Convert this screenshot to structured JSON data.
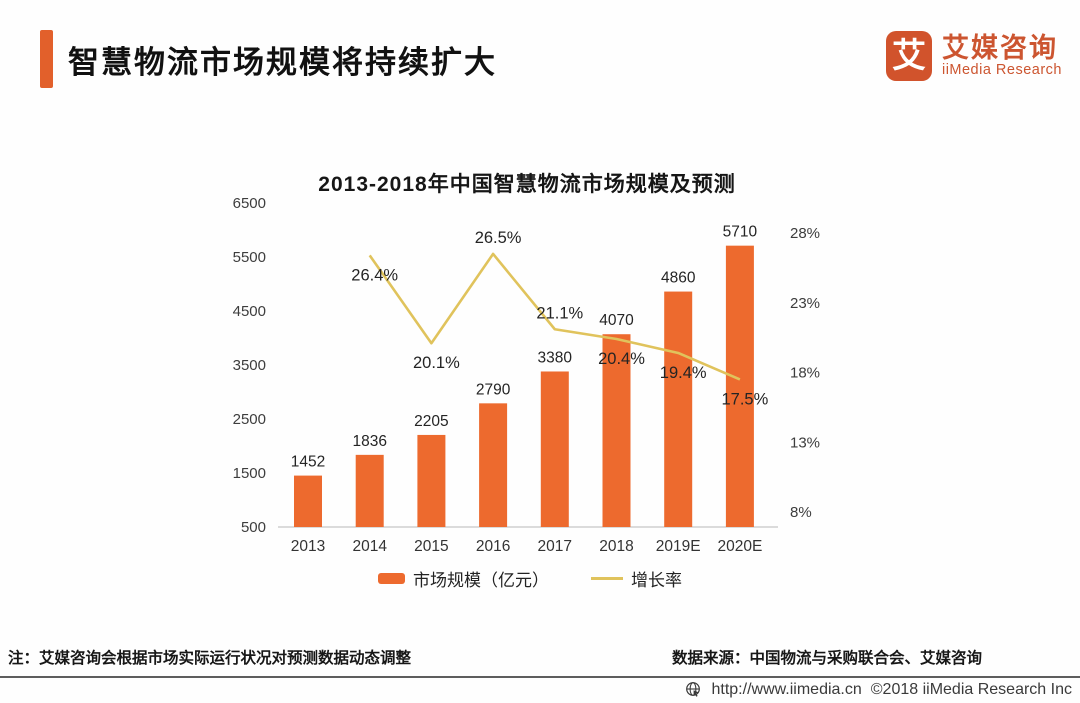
{
  "header": {
    "title": "智慧物流市场规模将持续扩大",
    "logo": {
      "mark": "艾",
      "name_cn": "艾媒咨询",
      "name_en": "iiMedia Research"
    }
  },
  "colors": {
    "accent": "#E2602B",
    "bar": "#ED6A2E",
    "line": "#E0C35C",
    "logo": "#CC5530",
    "axis": "#cfcfcf",
    "label": "#242424"
  },
  "chart_data": {
    "type": "bar+line",
    "title": "2013-2018年中国智慧物流市场规模及预测",
    "categories": [
      "2013",
      "2014",
      "2015",
      "2016",
      "2017",
      "2018",
      "2019E",
      "2020E"
    ],
    "series": [
      {
        "name": "市场规模（亿元）",
        "type": "bar",
        "color": "#ED6A2E",
        "values": [
          1452,
          1836,
          2205,
          2790,
          3380,
          4070,
          4860,
          5710
        ]
      },
      {
        "name": "增长率",
        "type": "line",
        "color": "#E0C35C",
        "unit": "%",
        "values": [
          null,
          26.4,
          20.1,
          26.5,
          21.1,
          20.4,
          19.4,
          17.5
        ],
        "labels": [
          null,
          "26.4%",
          "20.1%",
          "26.5%",
          "21.1%",
          "20.4%",
          "19.4%",
          "17.5%"
        ],
        "label_position": [
          null,
          "below",
          "below",
          "above",
          "above",
          "below",
          "below",
          "below"
        ]
      }
    ],
    "left_axis": {
      "min": 500,
      "max": 6500,
      "tick_labels": [
        "500",
        "1500",
        "2500",
        "3500",
        "4500",
        "5500",
        "6500"
      ]
    },
    "right_axis": {
      "min": 8,
      "max": 28,
      "tick_labels": [
        "8%",
        "13%",
        "18%",
        "23%",
        "28%"
      ]
    },
    "legend_position": "bottom",
    "grid": false
  },
  "footer": {
    "note": "注：艾媒咨询会根据市场实际运行状况对预测数据动态调整",
    "source": "数据来源：中国物流与采购联合会、艾媒咨询",
    "url": "http://www.iimedia.cn",
    "copyright": "©2018  iiMedia Research Inc"
  }
}
